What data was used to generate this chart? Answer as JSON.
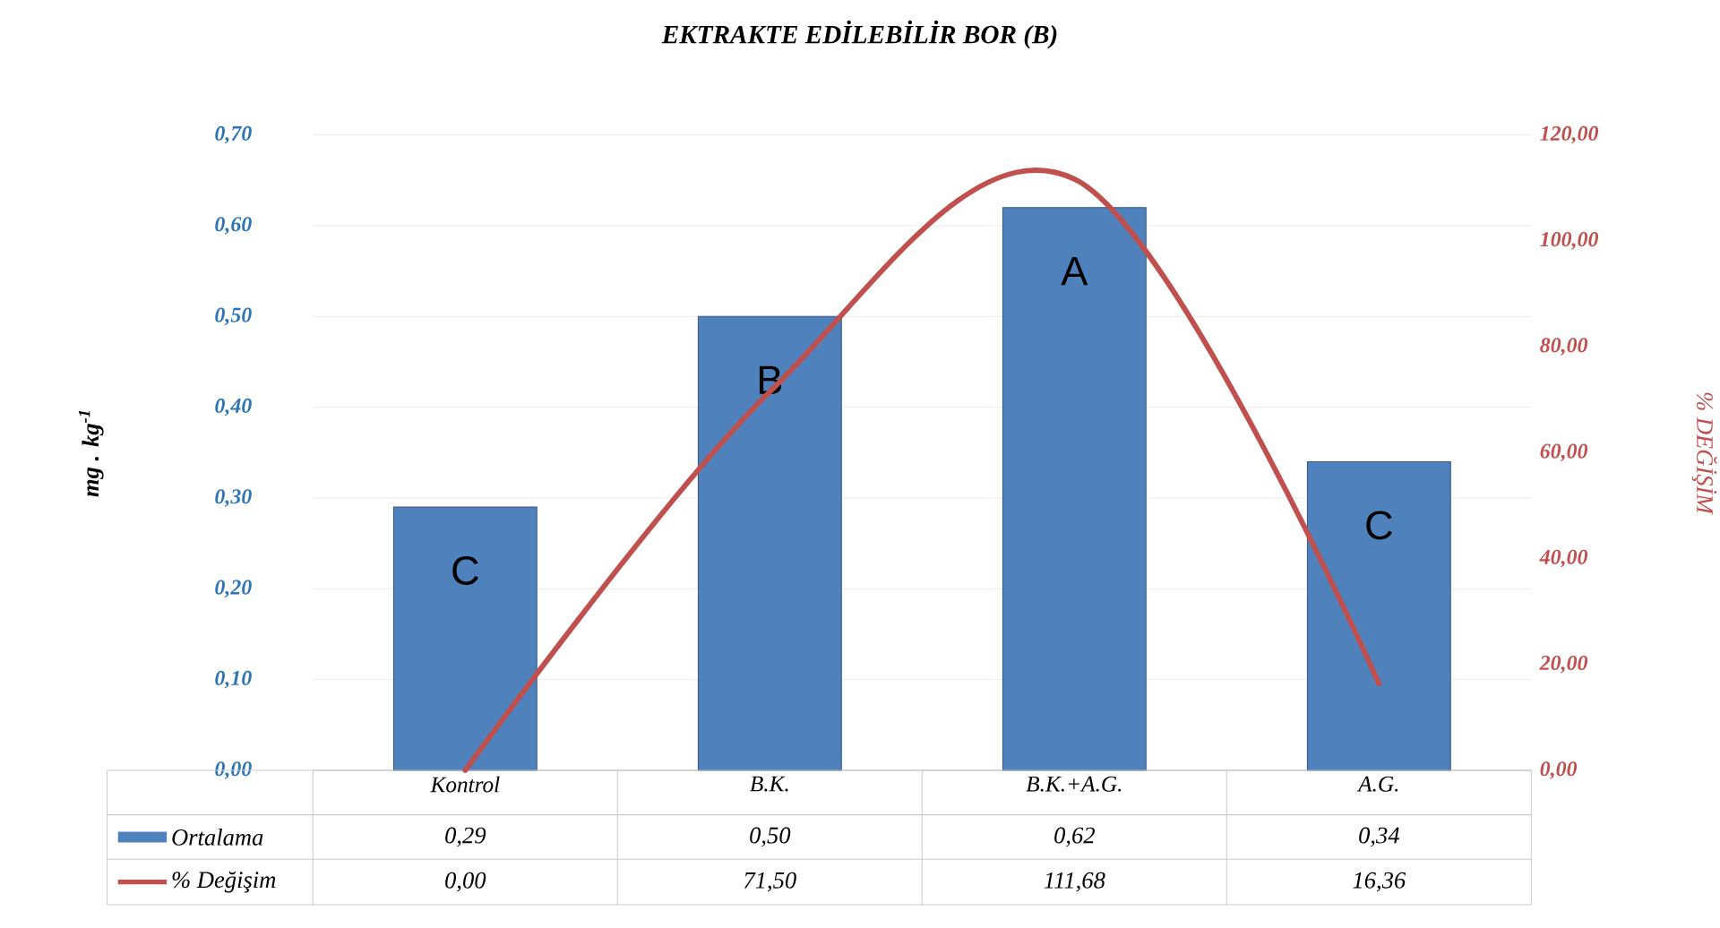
{
  "chart_data": {
    "type": "bar",
    "title": "EKTRAKTE EDİLEBİLİR BOR (B)",
    "ylabel": "mg . kg$^{-1}$",
    "y2label": "% DEĞİŞİM",
    "categories": [
      "Kontrol",
      "B.K.",
      "B.K.+A.G.",
      "A.G."
    ],
    "series": [
      {
        "name": "Ortalama",
        "color": "#4f81bd",
        "values": [
          0.29,
          0.5,
          0.62,
          0.34
        ],
        "value_labels": [
          "0,29",
          "0,50",
          "0,62",
          "0,34"
        ]
      },
      {
        "name": "% Değişim",
        "type": "line",
        "axis": "y2",
        "color": "#c0504d",
        "values": [
          0.0,
          71.5,
          111.68,
          16.36
        ],
        "value_labels": [
          "0,00",
          "71,50",
          "111,68",
          "16,36"
        ]
      }
    ],
    "ylim": [
      0,
      0.7
    ],
    "yticks": [
      {
        "value": 0,
        "label": "0,00"
      },
      {
        "value": 0.1,
        "label": "0,10"
      },
      {
        "value": 0.2,
        "label": "0,20"
      },
      {
        "value": 0.3,
        "label": "0,30"
      },
      {
        "value": 0.4,
        "label": "0,40"
      },
      {
        "value": 0.5,
        "label": "0,50"
      },
      {
        "value": 0.6,
        "label": "0,60"
      },
      {
        "value": 0.7,
        "label": "0,70"
      }
    ],
    "y2lim": [
      0,
      120
    ],
    "y2ticks": [
      {
        "value": 0,
        "label": "0,00"
      },
      {
        "value": 20,
        "label": "20,00"
      },
      {
        "value": 40,
        "label": "40,00"
      },
      {
        "value": 60,
        "label": "60,00"
      },
      {
        "value": 80,
        "label": "80,00"
      },
      {
        "value": 100,
        "label": "100,00"
      },
      {
        "value": 120,
        "label": "120,00"
      }
    ],
    "annotations": [
      "C",
      "B",
      "A",
      "C"
    ],
    "grid": "y",
    "legend": "bottom",
    "marker": "none",
    "line_style": "solid"
  }
}
